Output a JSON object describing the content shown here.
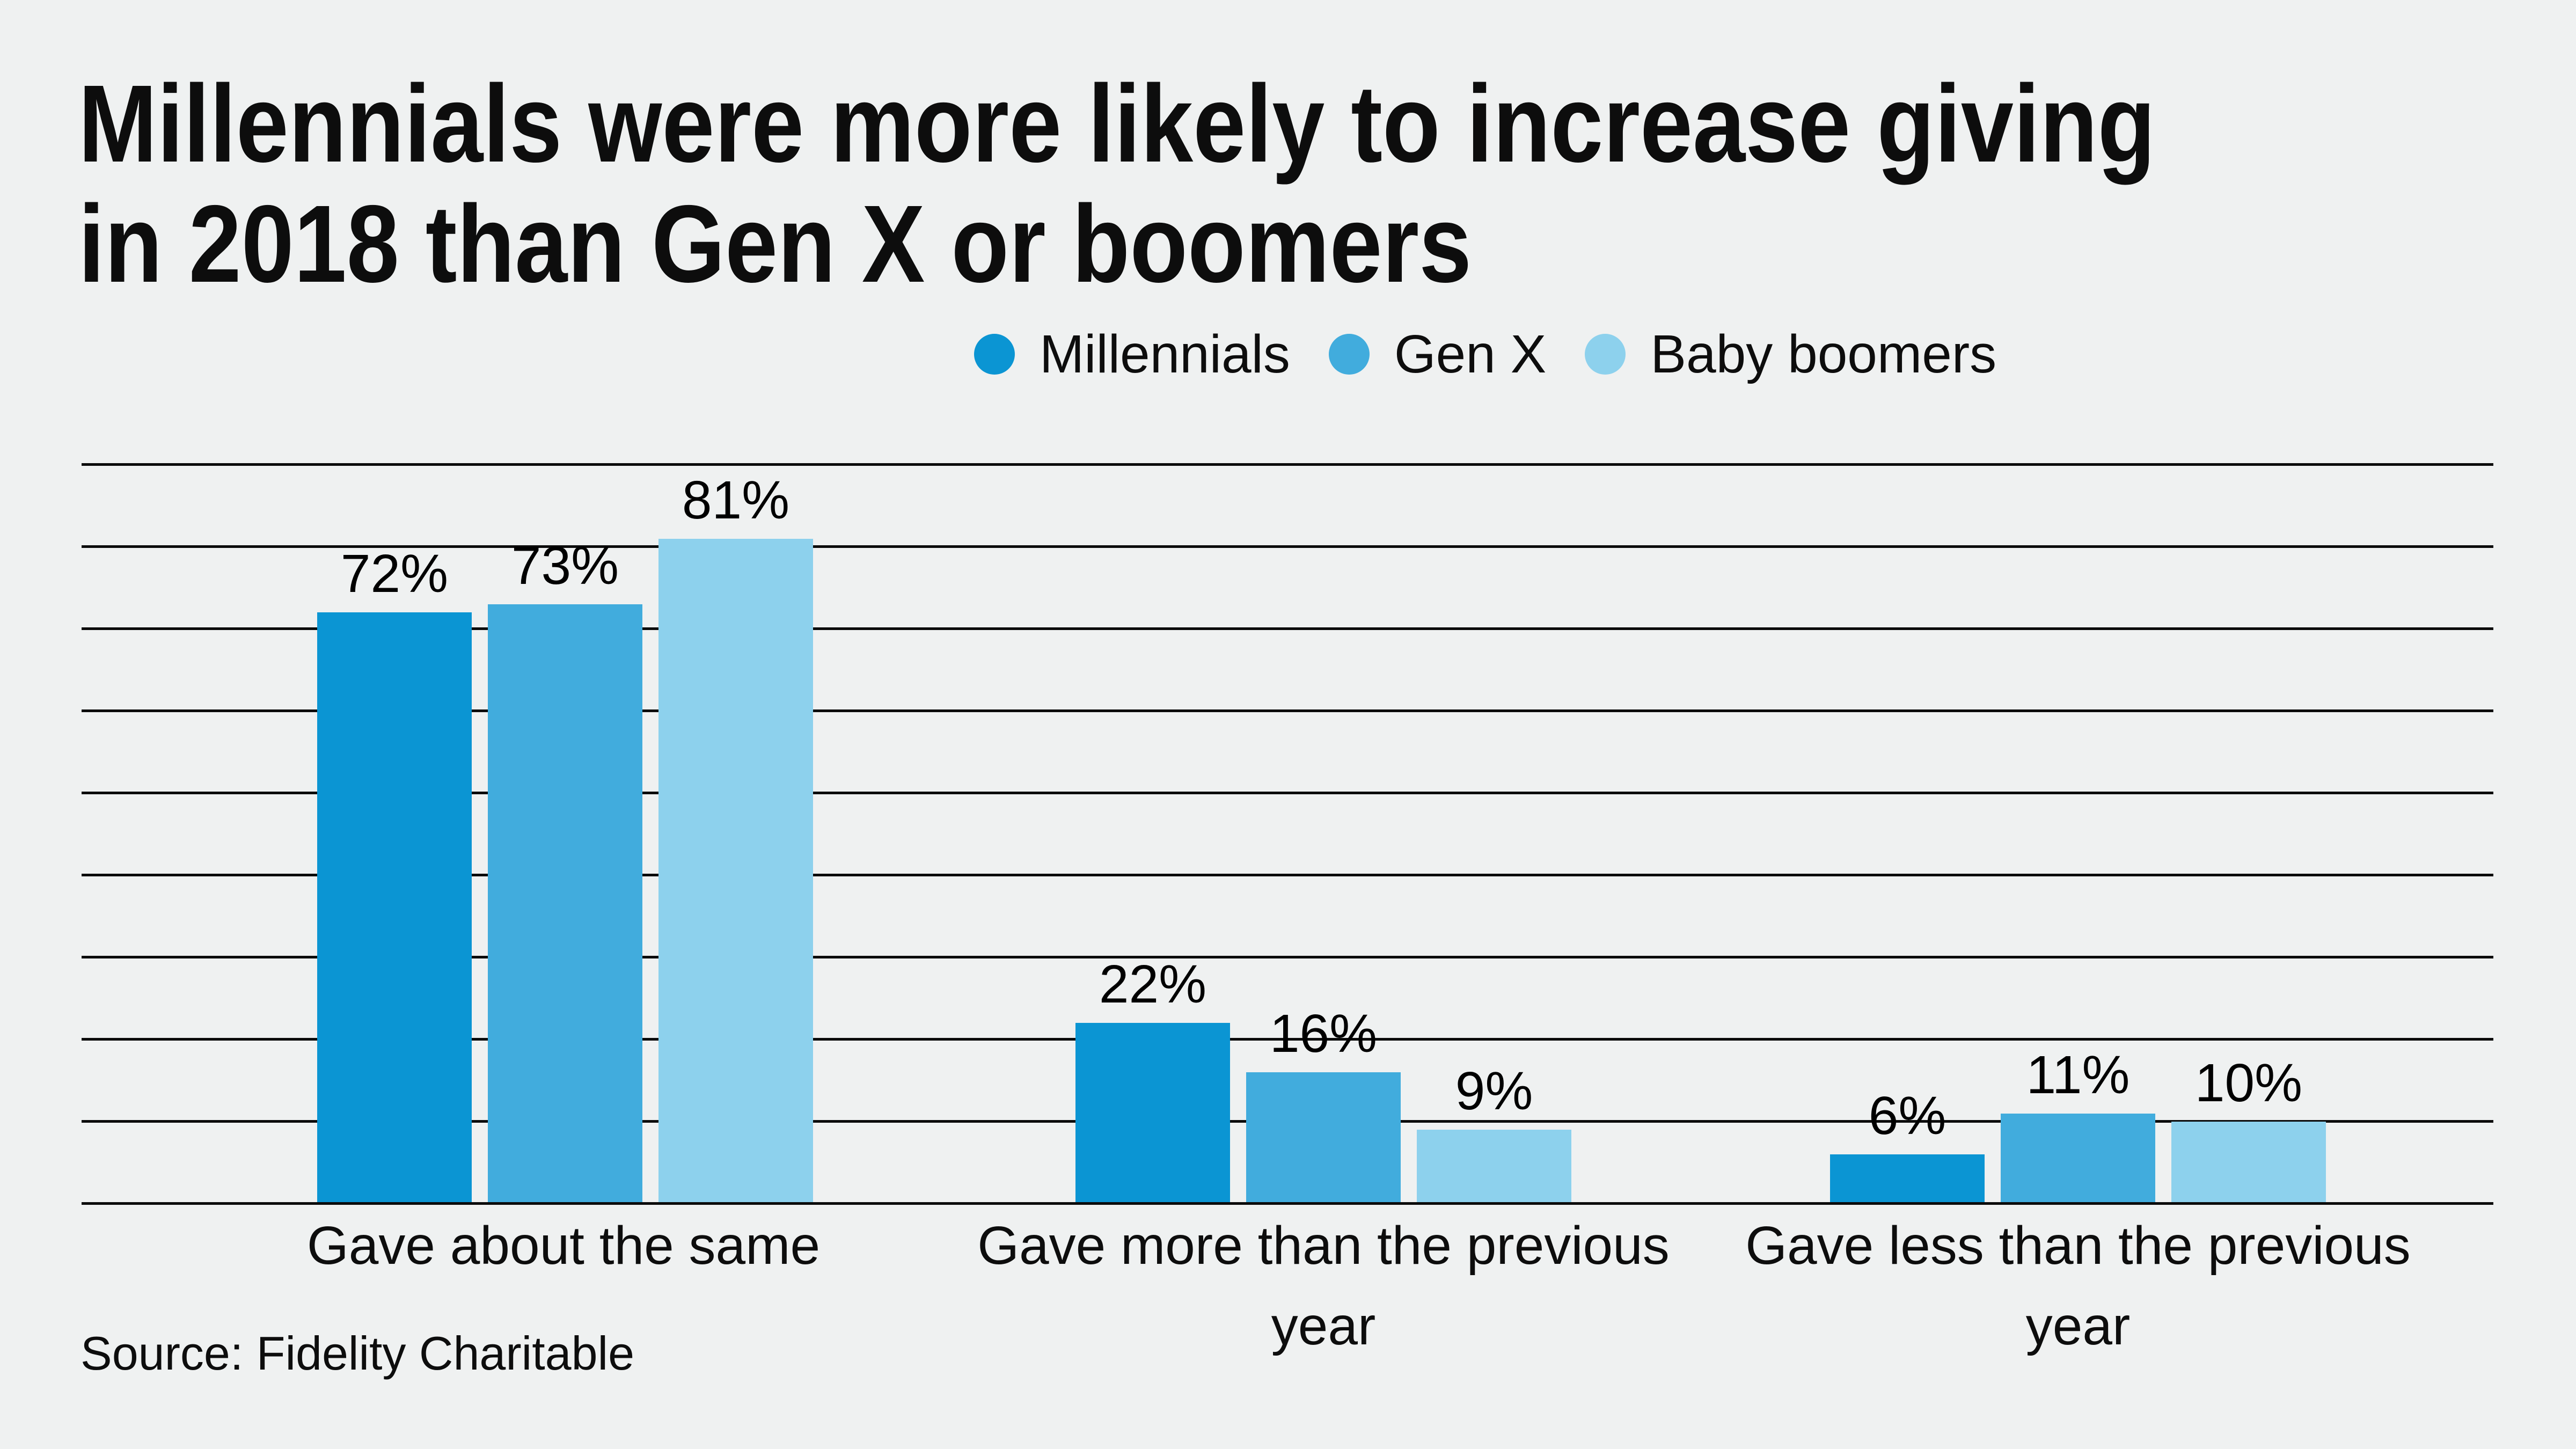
{
  "page": {
    "background": "#eff1f1"
  },
  "title": {
    "line1": "Millennials were more likely to increase giving",
    "line2": "in 2018 than Gen X or boomers"
  },
  "legend": {
    "items": [
      {
        "label": "Millennials",
        "color": "#0b95d3"
      },
      {
        "label": "Gen X",
        "color": "#41acdd"
      },
      {
        "label": "Baby boomers",
        "color": "#8dd1ed"
      }
    ]
  },
  "source": {
    "text": "Source: Fidelity Charitable"
  },
  "colors": {
    "background": "#eff1f1",
    "gridline": "#0b0b0b",
    "text": "#0d0d0d",
    "millennials_blue": "#0b95d3",
    "genx_blue": "#41acdd",
    "boomers_blue": "#8dd1ed"
  },
  "chart_data": {
    "type": "bar",
    "title": "Millennials were more likely to increase giving in 2018 than Gen X or boomers",
    "categories": [
      "Gave about the same",
      "Gave more than the previous year",
      "Gave less than the previous year"
    ],
    "category_label_lines": [
      [
        "Gave about the same",
        ""
      ],
      [
        "Gave more than the previous",
        "year"
      ],
      [
        "Gave less than the previous",
        "year"
      ]
    ],
    "series": [
      {
        "name": "Millennials",
        "color": "#0b95d3",
        "values": [
          72,
          22,
          6
        ],
        "value_labels": [
          "72%",
          "22%",
          "6%"
        ]
      },
      {
        "name": "Gen X",
        "color": "#41acdd",
        "values": [
          73,
          16,
          11
        ],
        "value_labels": [
          "73%",
          "16%",
          "11%"
        ]
      },
      {
        "name": "Baby boomers",
        "color": "#8dd1ed",
        "values": [
          81,
          9,
          10
        ],
        "value_labels": [
          "81%",
          "9%",
          "10%"
        ]
      }
    ],
    "xlabel": "",
    "ylabel": "",
    "ylim": [
      0,
      90
    ],
    "grid": {
      "show": true,
      "interval_percent": 10,
      "line_count": 10,
      "y_tick_labels_shown": false
    },
    "legend_position": "top-center",
    "value_suffix": "%"
  }
}
